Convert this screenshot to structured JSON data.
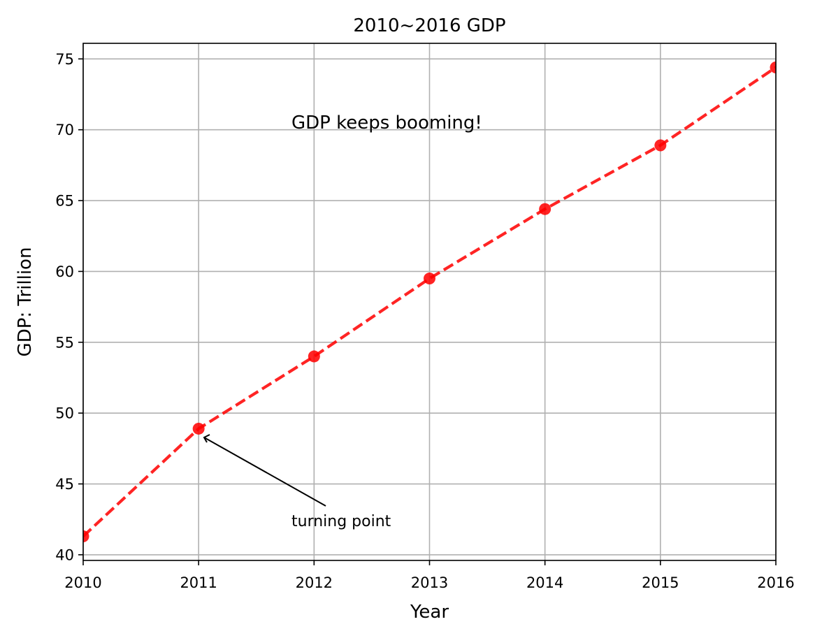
{
  "chart_data": {
    "type": "line",
    "title": "2010~2016 GDP",
    "xlabel": "Year",
    "ylabel": "GDP: Trillion",
    "x": [
      2010,
      2011,
      2012,
      2013,
      2014,
      2015,
      2016
    ],
    "x_tick_labels": [
      "2010",
      "2011",
      "2012",
      "2013",
      "2014",
      "2015",
      "2016"
    ],
    "y_ticks": [
      40,
      45,
      50,
      55,
      60,
      65,
      70,
      75
    ],
    "y_tick_labels": [
      "40",
      "45",
      "50",
      "55",
      "60",
      "65",
      "70",
      "75"
    ],
    "series": [
      {
        "values": [
          41.3,
          48.9,
          54.0,
          59.5,
          64.4,
          68.9,
          74.4
        ],
        "color": "#ff0000",
        "linestyle": "dashed",
        "marker": "circle"
      }
    ],
    "xlim": [
      2010,
      2016
    ],
    "ylim": [
      39.6,
      76.1
    ],
    "grid": true,
    "annotations": {
      "text_note": "GDP keeps booming!",
      "arrow_note": {
        "text": "turning point",
        "target_x": 2011,
        "target_y": 48.9
      }
    }
  }
}
